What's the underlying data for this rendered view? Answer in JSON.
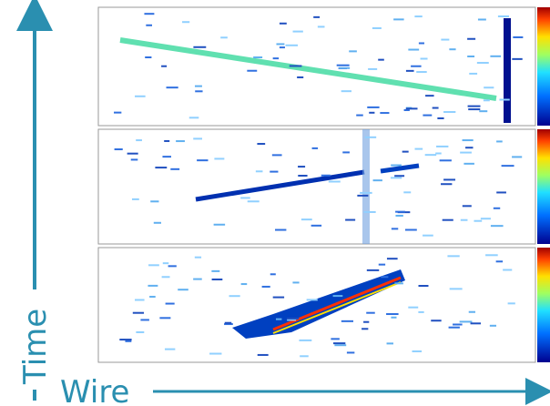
{
  "axes": {
    "y_label": "Time",
    "x_label": "Wire"
  }
}
